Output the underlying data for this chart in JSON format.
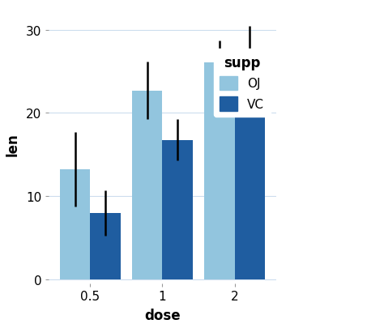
{
  "doses": [
    0.5,
    1,
    2
  ],
  "dose_labels": [
    "0.5",
    "1",
    "2"
  ],
  "OJ_means": [
    13.23,
    22.7,
    26.06
  ],
  "VC_means": [
    7.98,
    16.77,
    26.14
  ],
  "OJ_errors": [
    4.46,
    3.44,
    2.65
  ],
  "VC_errors": [
    2.75,
    2.52,
    4.34
  ],
  "color_OJ": "#92C5DE",
  "color_VC": "#1F5DA0",
  "xlabel": "dose",
  "ylabel": "len",
  "ylim": [
    -0.5,
    33
  ],
  "yticks": [
    0,
    10,
    20,
    30
  ],
  "legend_title": "supp",
  "legend_labels": [
    "OJ",
    "VC"
  ],
  "bar_width": 0.42,
  "plot_bg_color": "#FFFFFF",
  "fig_bg_color": "#FFFFFF",
  "grid_color": "#CCDDEE",
  "errorbar_lw": 1.8
}
